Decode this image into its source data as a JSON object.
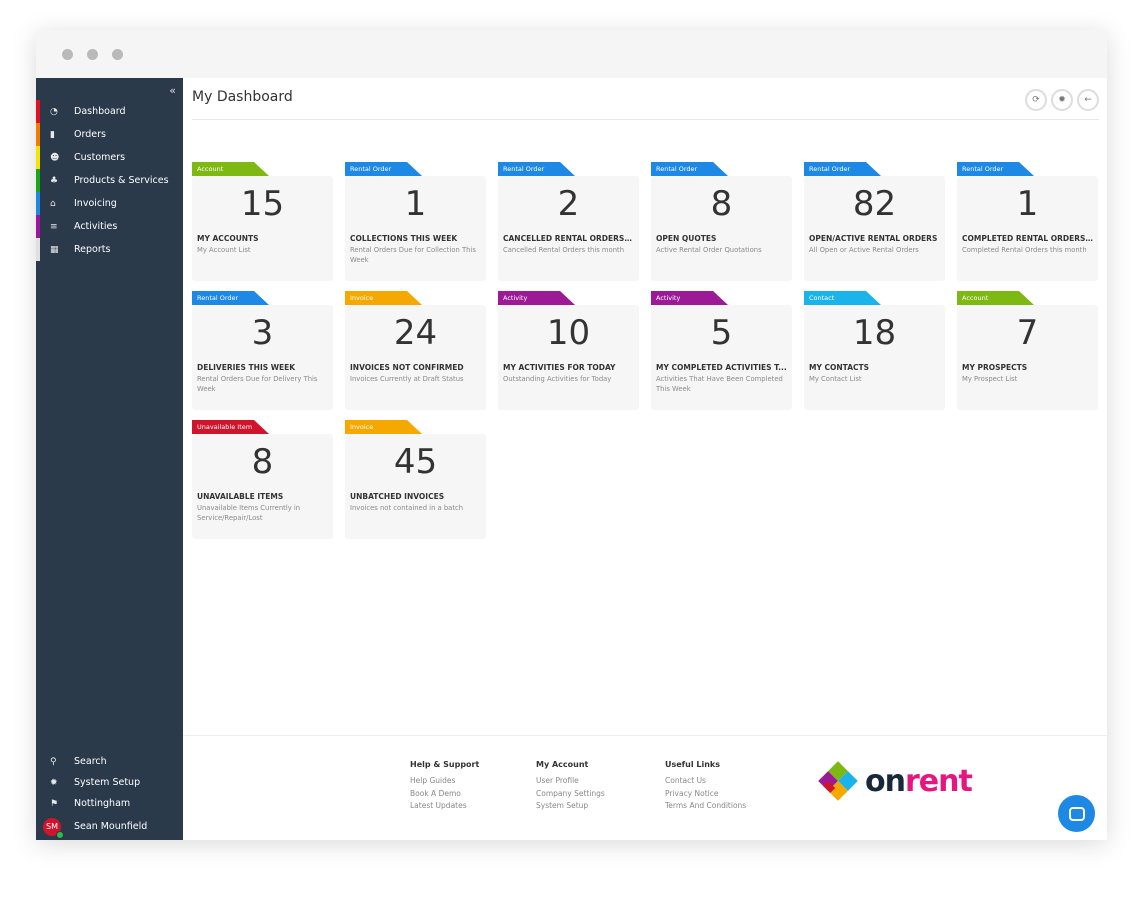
{
  "sidebar": {
    "items": [
      {
        "label": "Dashboard",
        "icon": "dashboard-icon",
        "glyph": "◔",
        "color": "#e3101f"
      },
      {
        "label": "Orders",
        "icon": "book-icon",
        "glyph": "▮",
        "color": "#f07d00"
      },
      {
        "label": "Customers",
        "icon": "users-icon",
        "glyph": "☻",
        "color": "#f2e500"
      },
      {
        "label": "Products & Services",
        "icon": "cubes-icon",
        "glyph": "♣",
        "color": "#1aa51a"
      },
      {
        "label": "Invoicing",
        "icon": "bank-icon",
        "glyph": "⌂",
        "color": "#1e88e5"
      },
      {
        "label": "Activities",
        "icon": "list-icon",
        "glyph": "≡",
        "color": "#a0139e"
      },
      {
        "label": "Reports",
        "icon": "table-icon",
        "glyph": "▦",
        "color": "#e0e0e0"
      }
    ],
    "bottom": [
      {
        "label": "Search",
        "icon": "search-icon",
        "glyph": "⚲"
      },
      {
        "label": "System Setup",
        "icon": "gear-icon",
        "glyph": "✹"
      },
      {
        "label": "Nottingham",
        "icon": "map-pin-icon",
        "glyph": "⚑"
      }
    ],
    "user": {
      "initials": "SM",
      "name": "Sean Mounfield"
    }
  },
  "header": {
    "title": "My Dashboard"
  },
  "cards": [
    {
      "tag": "Account",
      "color": "#7db813",
      "value": "15",
      "title": "MY ACCOUNTS",
      "subtitle": "My Account List"
    },
    {
      "tag": "Rental Order",
      "color": "#1e88e5",
      "value": "1",
      "title": "COLLECTIONS THIS WEEK",
      "subtitle": "Rental Orders Due for Collection This Week"
    },
    {
      "tag": "Rental Order",
      "color": "#1e88e5",
      "value": "2",
      "title": "CANCELLED RENTAL ORDERS T...",
      "subtitle": "Cancelled Rental Orders this month"
    },
    {
      "tag": "Rental Order",
      "color": "#1e88e5",
      "value": "8",
      "title": "OPEN QUOTES",
      "subtitle": "Active Rental Order Quotations"
    },
    {
      "tag": "Rental Order",
      "color": "#1e88e5",
      "value": "82",
      "title": "OPEN/ACTIVE RENTAL ORDERS",
      "subtitle": "All Open or Active Rental Orders"
    },
    {
      "tag": "Rental Order",
      "color": "#1e88e5",
      "value": "1",
      "title": "COMPLETED RENTAL ORDERS T...",
      "subtitle": "Completed Rental Orders this month"
    },
    {
      "tag": "Rental Order",
      "color": "#1e88e5",
      "value": "3",
      "title": "DELIVERIES THIS WEEK",
      "subtitle": "Rental Orders Due for Delivery This Week"
    },
    {
      "tag": "Invoice",
      "color": "#f5a800",
      "value": "24",
      "title": "INVOICES NOT CONFIRMED",
      "subtitle": "Invoices Currently at Draft Status"
    },
    {
      "tag": "Activity",
      "color": "#9c1a96",
      "value": "10",
      "title": "MY ACTIVITIES FOR TODAY",
      "subtitle": "Outstanding Activities for Today"
    },
    {
      "tag": "Activity",
      "color": "#9c1a96",
      "value": "5",
      "title": "MY COMPLETED ACTIVITIES T...",
      "subtitle": "Activities That Have Been Completed This Week"
    },
    {
      "tag": "Contact",
      "color": "#1bb4ea",
      "value": "18",
      "title": "MY CONTACTS",
      "subtitle": "My Contact List"
    },
    {
      "tag": "Account",
      "color": "#7db813",
      "value": "7",
      "title": "MY PROSPECTS",
      "subtitle": "My Prospect List"
    },
    {
      "tag": "Unavailable Item",
      "color": "#d0142c",
      "value": "8",
      "title": "UNAVAILABLE ITEMS",
      "subtitle": "Unavailable Items Currently in Service/Repair/Lost"
    },
    {
      "tag": "Invoice",
      "color": "#f5a800",
      "value": "45",
      "title": "UNBATCHED INVOICES",
      "subtitle": "Invoices not contained in a batch"
    }
  ],
  "footer": {
    "columns": [
      {
        "title": "Help & Support",
        "links": [
          "Help Guides",
          "Book A Demo",
          "Latest Updates"
        ]
      },
      {
        "title": "My Account",
        "links": [
          "User Profile",
          "Company Settings",
          "System Setup"
        ]
      },
      {
        "title": "Useful Links",
        "links": [
          "Contact Us",
          "Privacy Notice",
          "Terms And Conditions"
        ]
      }
    ],
    "logo": {
      "part1": "on",
      "part2": "rent"
    }
  }
}
